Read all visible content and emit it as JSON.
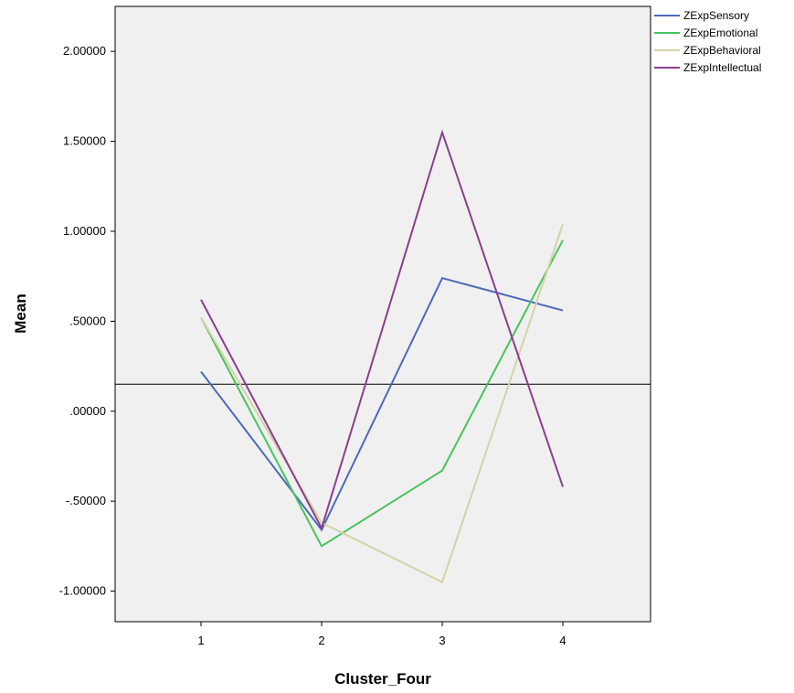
{
  "chart_data": {
    "type": "line",
    "title": "",
    "xlabel": "Cluster_Four",
    "ylabel": "Mean",
    "categories": [
      "1",
      "2",
      "3",
      "4"
    ],
    "ylim": [
      -1.17,
      2.25
    ],
    "y_ticks": [
      2.0,
      1.5,
      1.0,
      0.5,
      0.0,
      -0.5,
      -1.0
    ],
    "y_tick_labels": [
      "2.00000",
      "1.50000",
      "1.00000",
      ".50000",
      ".00000",
      "-.50000",
      "-1.00000"
    ],
    "reference_line": 0.15,
    "grid": false,
    "legend": "outside-top-right",
    "plot_background": "#f0f0f0",
    "series": [
      {
        "name": "ZExpSensory",
        "color": "#4f68b8",
        "values": [
          0.22,
          -0.66,
          0.74,
          0.56
        ]
      },
      {
        "name": "ZExpEmotional",
        "color": "#48c45e",
        "values": [
          0.52,
          -0.75,
          -0.33,
          0.95
        ]
      },
      {
        "name": "ZExpBehavioral",
        "color": "#d4d2a8",
        "values": [
          0.52,
          -0.62,
          -0.95,
          1.04
        ]
      },
      {
        "name": "ZExpIntellectual",
        "color": "#8a3e8e",
        "values": [
          0.62,
          -0.65,
          1.55,
          -0.42
        ]
      }
    ]
  }
}
